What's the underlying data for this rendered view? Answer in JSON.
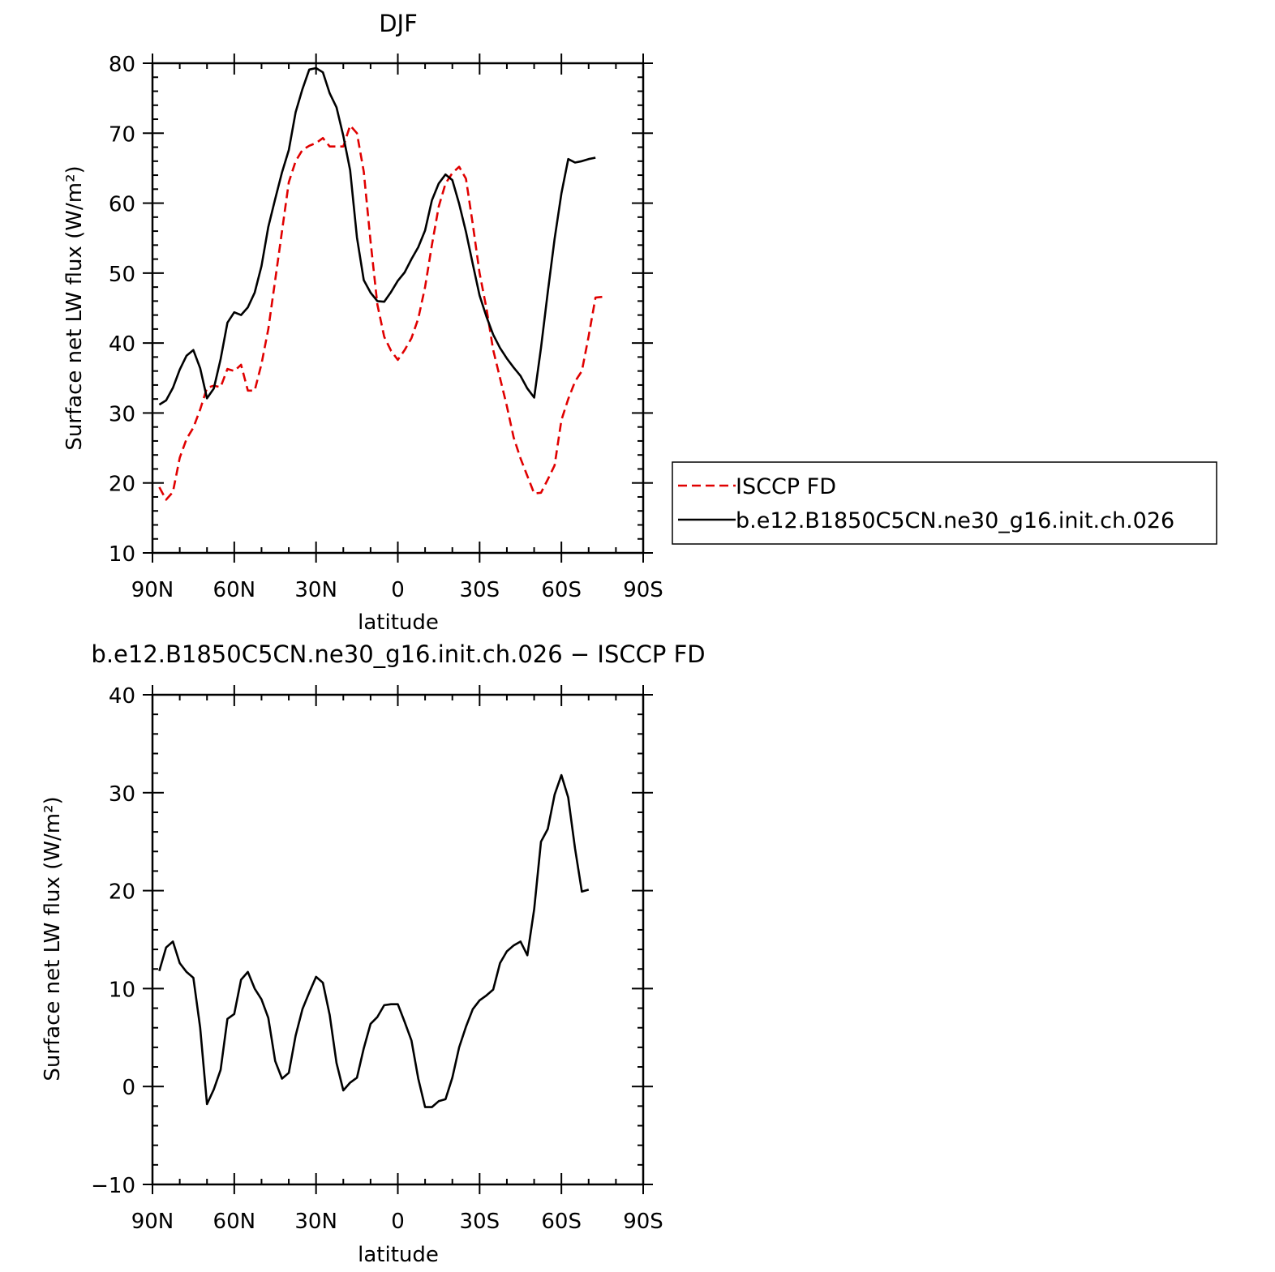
{
  "chart_data": [
    {
      "type": "line",
      "title": "DJF",
      "xlabel": "latitude",
      "ylabel": "Surface net LW flux (W/m²)",
      "xlim": [
        90,
        -90
      ],
      "ylim": [
        10,
        80
      ],
      "x_ticks": [
        90,
        60,
        30,
        0,
        -30,
        -60,
        -90
      ],
      "x_tick_labels": [
        "90N",
        "60N",
        "30N",
        "0",
        "30S",
        "60S",
        "90S"
      ],
      "y_ticks": [
        10,
        20,
        30,
        40,
        50,
        60,
        70,
        80
      ],
      "y_tick_labels": [
        "10",
        "20",
        "30",
        "40",
        "50",
        "60",
        "70",
        "80"
      ],
      "grid": false,
      "legend_position": "right, outside plot",
      "series": [
        {
          "name": "ISCCP FD",
          "color": "#e00000",
          "dash": "dashed",
          "points": [
            [
              87.5,
              19.4
            ],
            [
              85,
              17.6
            ],
            [
              82.5,
              18.7
            ],
            [
              80,
              23.6
            ],
            [
              77.5,
              26.3
            ],
            [
              75,
              27.9
            ],
            [
              72.5,
              30.5
            ],
            [
              70,
              33.6
            ],
            [
              67.5,
              33.9
            ],
            [
              65,
              33.7
            ],
            [
              62.5,
              36.3
            ],
            [
              60,
              36
            ],
            [
              57.5,
              36.9
            ],
            [
              55,
              33.2
            ],
            [
              52.5,
              33.2
            ],
            [
              50,
              37
            ],
            [
              47.5,
              42
            ],
            [
              45,
              49
            ],
            [
              42.5,
              56
            ],
            [
              40,
              63
            ],
            [
              37.5,
              66
            ],
            [
              35,
              67.6
            ],
            [
              32.5,
              68.2
            ],
            [
              30,
              68.6
            ],
            [
              27.5,
              69.3
            ],
            [
              25,
              68.1
            ],
            [
              22.5,
              68.1
            ],
            [
              20,
              68.1
            ],
            [
              17.5,
              71.1
            ],
            [
              15,
              70
            ],
            [
              12.5,
              64.5
            ],
            [
              10,
              54.5
            ],
            [
              7.5,
              45.5
            ],
            [
              5,
              40.9
            ],
            [
              2.5,
              38.9
            ],
            [
              0,
              37.6
            ],
            [
              -2.5,
              39
            ],
            [
              -5,
              40.7
            ],
            [
              -7.5,
              43.5
            ],
            [
              -10,
              48
            ],
            [
              -12.5,
              54
            ],
            [
              -15,
              59.5
            ],
            [
              -17.5,
              62.8
            ],
            [
              -20,
              64.3
            ],
            [
              -22.5,
              65.2
            ],
            [
              -25,
              63.5
            ],
            [
              -27.5,
              57
            ],
            [
              -30,
              50
            ],
            [
              -32.5,
              45
            ],
            [
              -35,
              39
            ],
            [
              -37.5,
              35
            ],
            [
              -40,
              31
            ],
            [
              -42.5,
              26.5
            ],
            [
              -45,
              23.5
            ],
            [
              -47.5,
              21
            ],
            [
              -50,
              18.5
            ],
            [
              -52.5,
              18.6
            ],
            [
              -55,
              20.5
            ],
            [
              -57.5,
              22.5
            ],
            [
              -60,
              29
            ],
            [
              -62.5,
              32
            ],
            [
              -65,
              34.5
            ],
            [
              -67.5,
              36
            ],
            [
              -70,
              41
            ],
            [
              -72.5,
              46.5
            ],
            [
              -75,
              46.6
            ]
          ]
        },
        {
          "name": "b.e12.B1850C5CN.ne30_g16.init.ch.026",
          "color": "#000000",
          "dash": "solid",
          "points": [
            [
              87.5,
              31.2
            ],
            [
              85,
              31.8
            ],
            [
              82.5,
              33.6
            ],
            [
              80,
              36.2
            ],
            [
              77.5,
              38.2
            ],
            [
              75,
              39
            ],
            [
              72.5,
              36.4
            ],
            [
              70,
              32.1
            ],
            [
              67.5,
              33.5
            ],
            [
              65,
              37.7
            ],
            [
              62.5,
              42.9
            ],
            [
              60,
              44.4
            ],
            [
              57.5,
              44
            ],
            [
              55,
              45.1
            ],
            [
              52.5,
              47.2
            ],
            [
              50,
              51
            ],
            [
              47.5,
              56.6
            ],
            [
              45,
              60.6
            ],
            [
              42.5,
              64.4
            ],
            [
              40,
              67.6
            ],
            [
              37.5,
              73
            ],
            [
              35,
              76.3
            ],
            [
              32.5,
              79.1
            ],
            [
              30,
              79.3
            ],
            [
              27.5,
              78.7
            ],
            [
              25,
              75.7
            ],
            [
              22.5,
              73.7
            ],
            [
              20,
              69.6
            ],
            [
              17.5,
              64.7
            ],
            [
              15,
              55.1
            ],
            [
              12.5,
              49
            ],
            [
              10,
              47.2
            ],
            [
              7.5,
              46
            ],
            [
              5,
              45.9
            ],
            [
              2.5,
              47.3
            ],
            [
              0,
              48.9
            ],
            [
              -2.5,
              50.1
            ],
            [
              -5,
              52
            ],
            [
              -7.5,
              53.7
            ],
            [
              -10,
              56.1
            ],
            [
              -12.5,
              60.4
            ],
            [
              -15,
              62.8
            ],
            [
              -17.5,
              64.1
            ],
            [
              -20,
              63.3
            ],
            [
              -22.5,
              59.9
            ],
            [
              -25,
              55.9
            ],
            [
              -27.5,
              51.3
            ],
            [
              -30,
              46.8
            ],
            [
              -32.5,
              43.8
            ],
            [
              -35,
              41.2
            ],
            [
              -37.5,
              39.3
            ],
            [
              -40,
              37.8
            ],
            [
              -42.5,
              36.5
            ],
            [
              -45,
              35.3
            ],
            [
              -47.5,
              33.5
            ],
            [
              -50,
              32.2
            ],
            [
              -52.5,
              39.3
            ],
            [
              -55,
              47.3
            ],
            [
              -57.5,
              54.9
            ],
            [
              -60,
              61.4
            ],
            [
              -62.5,
              66.3
            ],
            [
              -65,
              65.8
            ],
            [
              -67.5,
              66
            ],
            [
              -70,
              66.3
            ],
            [
              -72.5,
              66.5
            ]
          ]
        }
      ]
    },
    {
      "type": "line",
      "title": "b.e12.B1850C5CN.ne30_g16.init.ch.026 − ISCCP FD",
      "xlabel": "latitude",
      "ylabel": "Surface net LW flux (W/m²)",
      "xlim": [
        90,
        -90
      ],
      "ylim": [
        -10,
        40
      ],
      "x_ticks": [
        90,
        60,
        30,
        0,
        -30,
        -60,
        -90
      ],
      "x_tick_labels": [
        "90N",
        "60N",
        "30N",
        "0",
        "30S",
        "60S",
        "90S"
      ],
      "y_ticks": [
        -10,
        0,
        10,
        20,
        30,
        40
      ],
      "y_tick_labels": [
        "−10",
        "0",
        "10",
        "20",
        "30",
        "40"
      ],
      "grid": false,
      "series": [
        {
          "color": "#000000",
          "dash": "solid",
          "points": [
            [
              87.5,
              11.8
            ],
            [
              85,
              14.2
            ],
            [
              82.5,
              14.8
            ],
            [
              80,
              12.6
            ],
            [
              77.5,
              11.7
            ],
            [
              75,
              11.1
            ],
            [
              72.5,
              6
            ],
            [
              70,
              -1.8
            ],
            [
              67.5,
              -0.3
            ],
            [
              65,
              1.7
            ],
            [
              62.5,
              6.9
            ],
            [
              60,
              7.4
            ],
            [
              57.5,
              10.9
            ],
            [
              55,
              11.7
            ],
            [
              52.5,
              10
            ],
            [
              50,
              8.9
            ],
            [
              47.5,
              7
            ],
            [
              45,
              2.6
            ],
            [
              42.5,
              0.8
            ],
            [
              40,
              1.4
            ],
            [
              37.5,
              5.2
            ],
            [
              35,
              7.9
            ],
            [
              32.5,
              9.6
            ],
            [
              30,
              11.2
            ],
            [
              27.5,
              10.6
            ],
            [
              25,
              7.3
            ],
            [
              22.5,
              2.4
            ],
            [
              20,
              -0.4
            ],
            [
              17.5,
              0.4
            ],
            [
              15,
              0.9
            ],
            [
              12.5,
              3.9
            ],
            [
              10,
              6.4
            ],
            [
              7.5,
              7.1
            ],
            [
              5,
              8.3
            ],
            [
              2.5,
              8.4
            ],
            [
              0,
              8.4
            ],
            [
              -2.5,
              6.6
            ],
            [
              -5,
              4.7
            ],
            [
              -7.5,
              0.8
            ],
            [
              -10,
              -2.1
            ],
            [
              -12.5,
              -2.1
            ],
            [
              -15,
              -1.5
            ],
            [
              -17.5,
              -1.3
            ],
            [
              -20,
              0.9
            ],
            [
              -22.5,
              4
            ],
            [
              -25,
              6.1
            ],
            [
              -27.5,
              7.9
            ],
            [
              -30,
              8.8
            ],
            [
              -32.5,
              9.3
            ],
            [
              -35,
              9.9
            ],
            [
              -37.5,
              12.6
            ],
            [
              -40,
              13.8
            ],
            [
              -42.5,
              14.4
            ],
            [
              -45,
              14.8
            ],
            [
              -47.5,
              13.4
            ],
            [
              -50,
              18.1
            ],
            [
              -52.5,
              25
            ],
            [
              -55,
              26.3
            ],
            [
              -57.5,
              29.8
            ],
            [
              -60,
              31.8
            ],
            [
              -62.5,
              29.5
            ],
            [
              -65,
              24.3
            ],
            [
              -67.5,
              19.9
            ],
            [
              -70,
              20.1
            ]
          ]
        }
      ]
    }
  ]
}
